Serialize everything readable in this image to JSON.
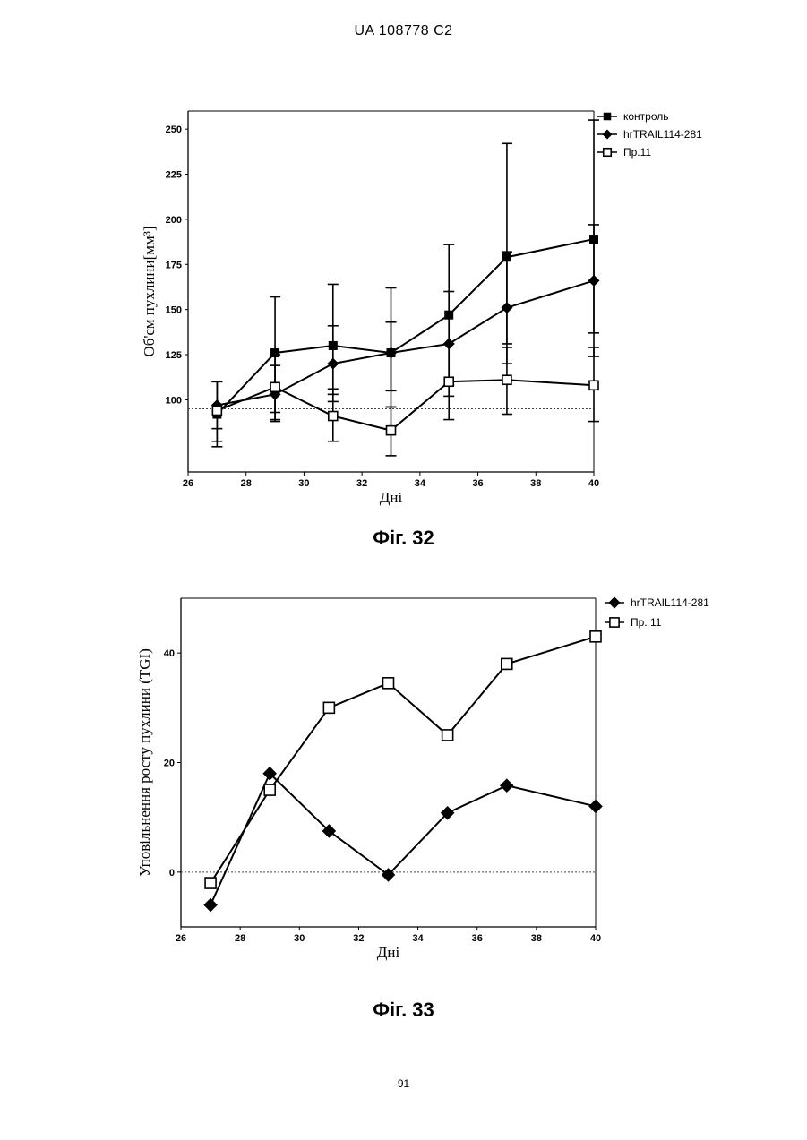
{
  "header": "UA   108778   C2",
  "page_number": "91",
  "chart_data": [
    {
      "type": "line",
      "caption": "Фіг. 32",
      "xlabel": "Дні",
      "ylabel": "Об'єм пухлини[мм³]",
      "xlim": [
        26,
        40
      ],
      "ylim": [
        60,
        260
      ],
      "xticks": [
        26,
        28,
        30,
        32,
        34,
        36,
        38,
        40
      ],
      "yticks": [
        100,
        125,
        150,
        175,
        200,
        225,
        250
      ],
      "reference_line_y": 95,
      "legend_placement": "top-right",
      "series": [
        {
          "name": "контроль",
          "marker": "filled-square",
          "x": [
            27,
            29,
            31,
            33,
            35,
            37,
            40
          ],
          "y": [
            92,
            126,
            130,
            126,
            147,
            179,
            189
          ],
          "err_lo": [
            74,
            93,
            103,
            105,
            108,
            131,
            137
          ],
          "err_hi": [
            110,
            157,
            164,
            162,
            186,
            242,
            255
          ]
        },
        {
          "name": "hrTRAIL114-281",
          "marker": "filled-diamond",
          "x": [
            27,
            29,
            31,
            33,
            35,
            37,
            40
          ],
          "y": [
            97,
            103,
            120,
            126,
            131,
            151,
            166
          ],
          "err_lo": [
            84,
            88,
            99,
            96,
            102,
            120,
            124
          ],
          "err_hi": [
            110,
            119,
            141,
            143,
            160,
            182,
            197
          ]
        },
        {
          "name": "Пр.11",
          "marker": "open-square",
          "x": [
            27,
            29,
            31,
            33,
            35,
            37,
            40
          ],
          "y": [
            94,
            107,
            91,
            83,
            110,
            111,
            108
          ],
          "err_lo": [
            77,
            89,
            77,
            69,
            89,
            92,
            88
          ],
          "err_hi": [
            110,
            125,
            106,
            96,
            131,
            129,
            129
          ]
        }
      ]
    },
    {
      "type": "line",
      "caption": "Фіг. 33",
      "xlabel": "Дні",
      "ylabel": "Уповільнення росту пухлини (TGI)",
      "xlim": [
        26,
        40
      ],
      "ylim": [
        -10,
        50
      ],
      "xticks": [
        26,
        28,
        30,
        32,
        34,
        36,
        38,
        40
      ],
      "yticks": [
        0,
        20,
        40
      ],
      "reference_line_y": 0,
      "legend_placement": "top-right",
      "series": [
        {
          "name": "hrTRAIL114-281",
          "marker": "filled-diamond",
          "x": [
            27,
            29,
            31,
            33,
            35,
            37,
            40
          ],
          "y": [
            -6,
            18,
            7.5,
            -0.5,
            10.8,
            15.8,
            12
          ]
        },
        {
          "name": "Пр. 11",
          "marker": "open-square",
          "x": [
            27,
            29,
            31,
            33,
            35,
            37,
            40
          ],
          "y": [
            -2,
            15,
            30,
            34.5,
            25,
            38,
            43
          ]
        }
      ]
    }
  ]
}
